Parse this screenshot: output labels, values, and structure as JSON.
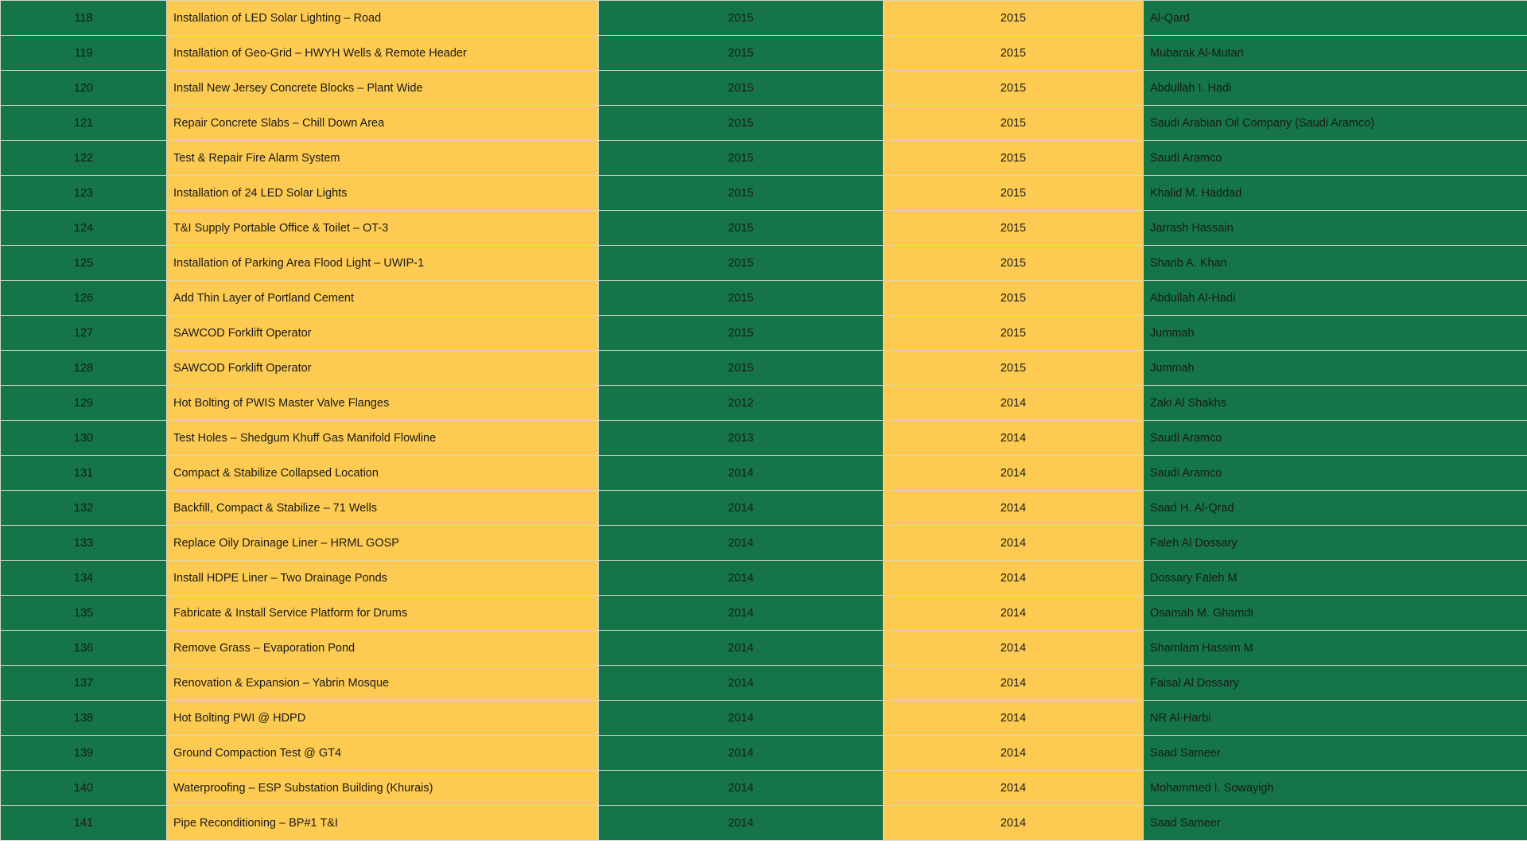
{
  "colors": {
    "green": "#157448",
    "yellow": "#fecb52"
  },
  "rows": [
    [
      "118",
      "Installation of LED Solar Lighting – Road",
      "2015",
      "2015",
      "Al-Qard"
    ],
    [
      "119",
      "Installation of Geo-Grid – HWYH Wells & Remote Header",
      "2015",
      "2015",
      "Mubarak Al-Mutari"
    ],
    [
      "120",
      "Install New Jersey Concrete Blocks – Plant Wide",
      "2015",
      "2015",
      "Abdullah I. Hadi"
    ],
    [
      "121",
      "Repair Concrete Slabs – Chill Down Area",
      "2015",
      "2015",
      "Saudi Arabian Oil Company (Saudi Aramco)"
    ],
    [
      "122",
      "Test & Repair Fire Alarm System",
      "2015",
      "2015",
      "Saudi Aramco"
    ],
    [
      "123",
      "Installation of 24 LED Solar Lights",
      "2015",
      "2015",
      "Khalid M. Haddad"
    ],
    [
      "124",
      "T&I Supply Portable Office & Toilet – OT-3",
      "2015",
      "2015",
      "Jarrash Hassain"
    ],
    [
      "125",
      "Installation of Parking Area Flood Light – UWIP-1",
      "2015",
      "2015",
      "Sharib A. Khan"
    ],
    [
      "126",
      "Add Thin Layer of Portland Cement",
      "2015",
      "2015",
      "Abdullah Al-Hadi"
    ],
    [
      "127",
      "SAWCOD Forklift Operator",
      "2015",
      "2015",
      "Jummah"
    ],
    [
      "128",
      "SAWCOD Forklift Operator",
      "2015",
      "2015",
      "Jummah"
    ],
    [
      "129",
      "Hot Bolting of PWIS Master Valve Flanges",
      "2012",
      "2014",
      "Zaki Al Shakhs"
    ],
    [
      "130",
      "Test Holes – Shedgum Khuff Gas Manifold Flowline",
      "2013",
      "2014",
      "Saudi Aramco"
    ],
    [
      "131",
      "Compact & Stabilize Collapsed Location",
      "2014",
      "2014",
      "Saudi Aramco"
    ],
    [
      "132",
      "Backfill, Compact & Stabilize – 71 Wells",
      "2014",
      "2014",
      "Saad H. Al-Qrad"
    ],
    [
      "133",
      "Replace Oily Drainage Liner – HRML GOSP",
      "2014",
      "2014",
      "Faleh Al Dossary"
    ],
    [
      "134",
      "Install HDPE Liner – Two Drainage Ponds",
      "2014",
      "2014",
      "Dossary Faleh M"
    ],
    [
      "135",
      "Fabricate & Install Service Platform for Drums",
      "2014",
      "2014",
      "Osamah M. Ghamdi"
    ],
    [
      "136",
      "Remove Grass – Evaporation Pond",
      "2014",
      "2014",
      "Shamlam Hassim M"
    ],
    [
      "137",
      "Renovation & Expansion – Yabrin Mosque",
      "2014",
      "2014",
      "Faisal Al Dossary"
    ],
    [
      "138",
      "Hot Bolting PWI @ HDPD",
      "2014",
      "2014",
      "NR Al-Harbi"
    ],
    [
      "139",
      "Ground Compaction Test @ GT4",
      "2014",
      "2014",
      "Saad Sameer"
    ],
    [
      "140",
      "Waterproofing – ESP Substation Building (Khurais)",
      "2014",
      "2014",
      "Mohammed I. Sowayigh"
    ],
    [
      "141",
      "Pipe Reconditioning – BP#1 T&I",
      "2014",
      "2014",
      "Saad Sameer"
    ]
  ]
}
